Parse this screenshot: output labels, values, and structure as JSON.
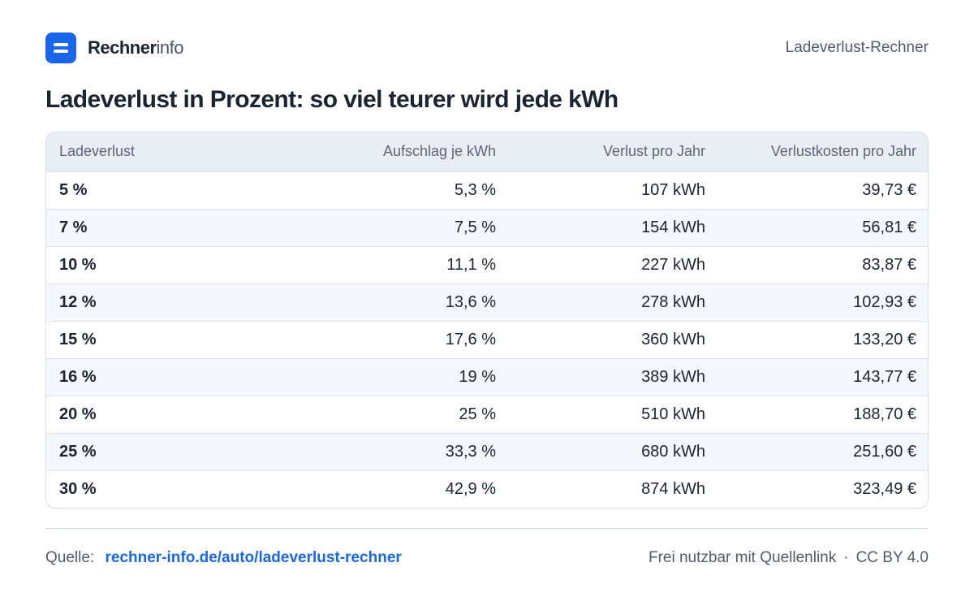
{
  "header": {
    "brand_strong": "Rechner",
    "brand_light": "info",
    "page_label": "Ladeverlust-Rechner"
  },
  "title": "Ladeverlust in Prozent: so viel teurer wird jede kWh",
  "table": {
    "columns": [
      "Ladeverlust",
      "Aufschlag je kWh",
      "Verlust pro Jahr",
      "Verlustkosten pro Jahr"
    ],
    "rows": [
      [
        "5 %",
        "5,3 %",
        "107 kWh",
        "39,73 €"
      ],
      [
        "7 %",
        "7,5 %",
        "154 kWh",
        "56,81 €"
      ],
      [
        "10 %",
        "11,1 %",
        "227 kWh",
        "83,87 €"
      ],
      [
        "12 %",
        "13,6 %",
        "278 kWh",
        "102,93 €"
      ],
      [
        "15 %",
        "17,6 %",
        "360 kWh",
        "133,20 €"
      ],
      [
        "16 %",
        "19 %",
        "389 kWh",
        "143,77 €"
      ],
      [
        "20 %",
        "25 %",
        "510 kWh",
        "188,70 €"
      ],
      [
        "25 %",
        "33,3 %",
        "680 kWh",
        "251,60 €"
      ],
      [
        "30 %",
        "42,9 %",
        "874 kWh",
        "323,49 €"
      ]
    ]
  },
  "footer": {
    "source_label": "Quelle:",
    "source_link": "rechner-info.de/auto/ladeverlust-rechner",
    "license_text": "Frei nutzbar mit Quellenlink",
    "separator": "·",
    "license_name": "CC BY 4.0"
  },
  "colors": {
    "accent": "#1967e8",
    "header_bg": "#e9eef5",
    "stripe_bg": "#f4f7fb",
    "border": "#d7dde6"
  }
}
